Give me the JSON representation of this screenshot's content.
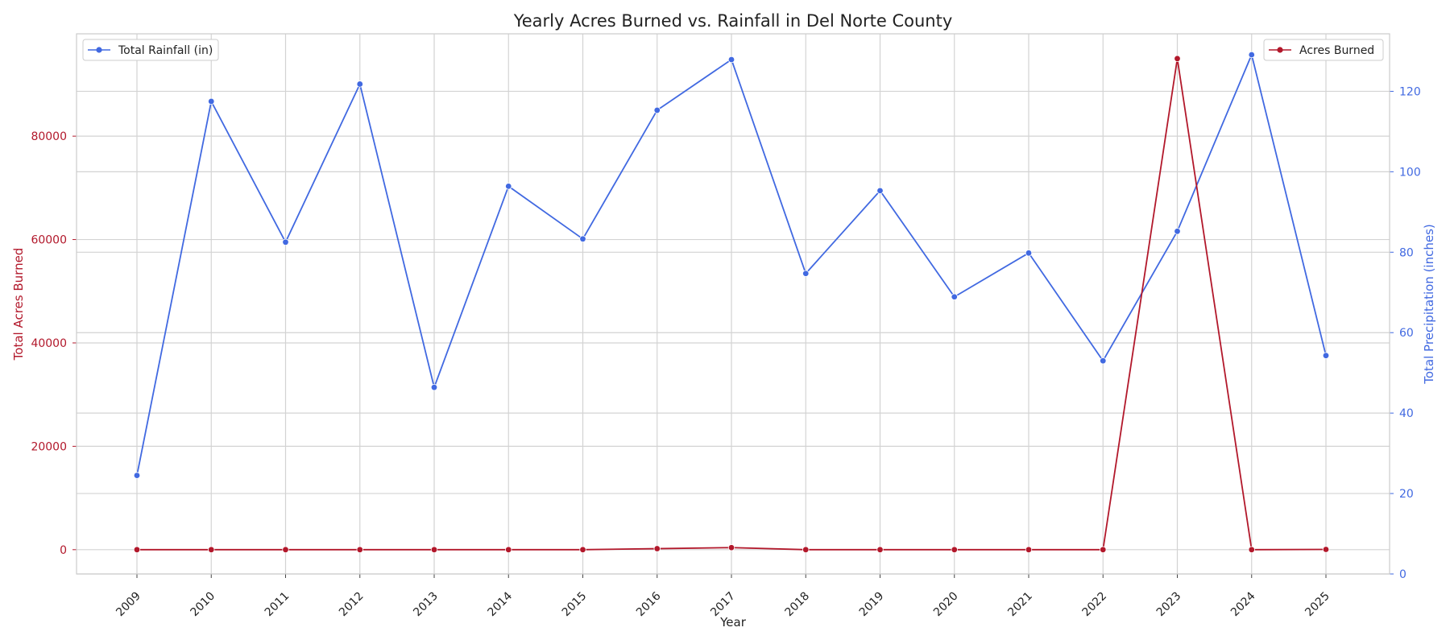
{
  "chart_data": {
    "type": "line",
    "title": "Yearly Acres Burned vs. Rainfall in Del Norte County",
    "xlabel": "Year",
    "ylabel_left": "Total Acres Burned",
    "ylabel_right": "Total Precipitation (inches)",
    "categories": [
      "2009",
      "2010",
      "2011",
      "2012",
      "2013",
      "2014",
      "2015",
      "2016",
      "2017",
      "2018",
      "2019",
      "2020",
      "2021",
      "2022",
      "2023",
      "2024",
      "2025"
    ],
    "series": [
      {
        "name": "Acres Burned",
        "axis": "left",
        "color": "#b2182b",
        "values": [
          0,
          0,
          0,
          0,
          0,
          0,
          0,
          200,
          400,
          0,
          0,
          0,
          0,
          0,
          95000,
          0,
          50
        ]
      },
      {
        "name": "Total Rainfall (in)",
        "axis": "right",
        "color": "#4169e1",
        "values": [
          24.5,
          117.5,
          82.5,
          121.8,
          46.4,
          96.4,
          83.3,
          115.3,
          127.9,
          74.7,
          95.3,
          68.9,
          79.8,
          53.0,
          85.2,
          129.1,
          54.3
        ]
      }
    ],
    "y_left": {
      "range": [
        -4700,
        99800
      ],
      "ticks": [
        0,
        20000,
        40000,
        60000,
        80000
      ]
    },
    "y_right": {
      "range": [
        0,
        134.3
      ],
      "ticks": [
        0,
        20,
        40,
        60,
        80,
        100,
        120
      ]
    },
    "legend_left": {
      "position": "upper left",
      "label": "Total Rainfall (in)"
    },
    "legend_right": {
      "position": "upper right",
      "label": "Acres Burned"
    },
    "grid": true
  }
}
